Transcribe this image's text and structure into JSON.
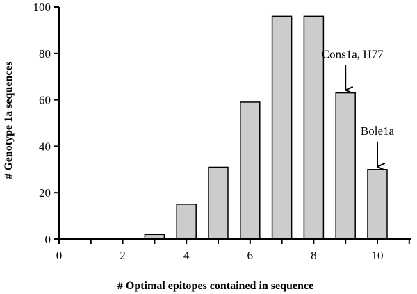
{
  "chart_data": {
    "type": "bar",
    "xlabel": "# Optimal epitopes contained in sequence",
    "ylabel": "# Genotype 1a sequences",
    "xlim": [
      0,
      11.5
    ],
    "ylim": [
      0,
      100
    ],
    "xticks": [
      0,
      2,
      4,
      6,
      8,
      10
    ],
    "yticks": [
      0,
      20,
      40,
      60,
      80,
      100
    ],
    "bars": [
      {
        "x": 3,
        "value": 2
      },
      {
        "x": 4,
        "value": 15
      },
      {
        "x": 5,
        "value": 31
      },
      {
        "x": 6,
        "value": 59
      },
      {
        "x": 7,
        "value": 96
      },
      {
        "x": 8,
        "value": 96
      },
      {
        "x": 9,
        "value": 63
      },
      {
        "x": 10,
        "value": 30
      }
    ],
    "bar_color": "#cccccc",
    "annotations": [
      {
        "text": "Cons1a, H77",
        "x": 9,
        "value": 63
      },
      {
        "text": "Bole1a",
        "x": 10,
        "value": 30
      }
    ]
  }
}
